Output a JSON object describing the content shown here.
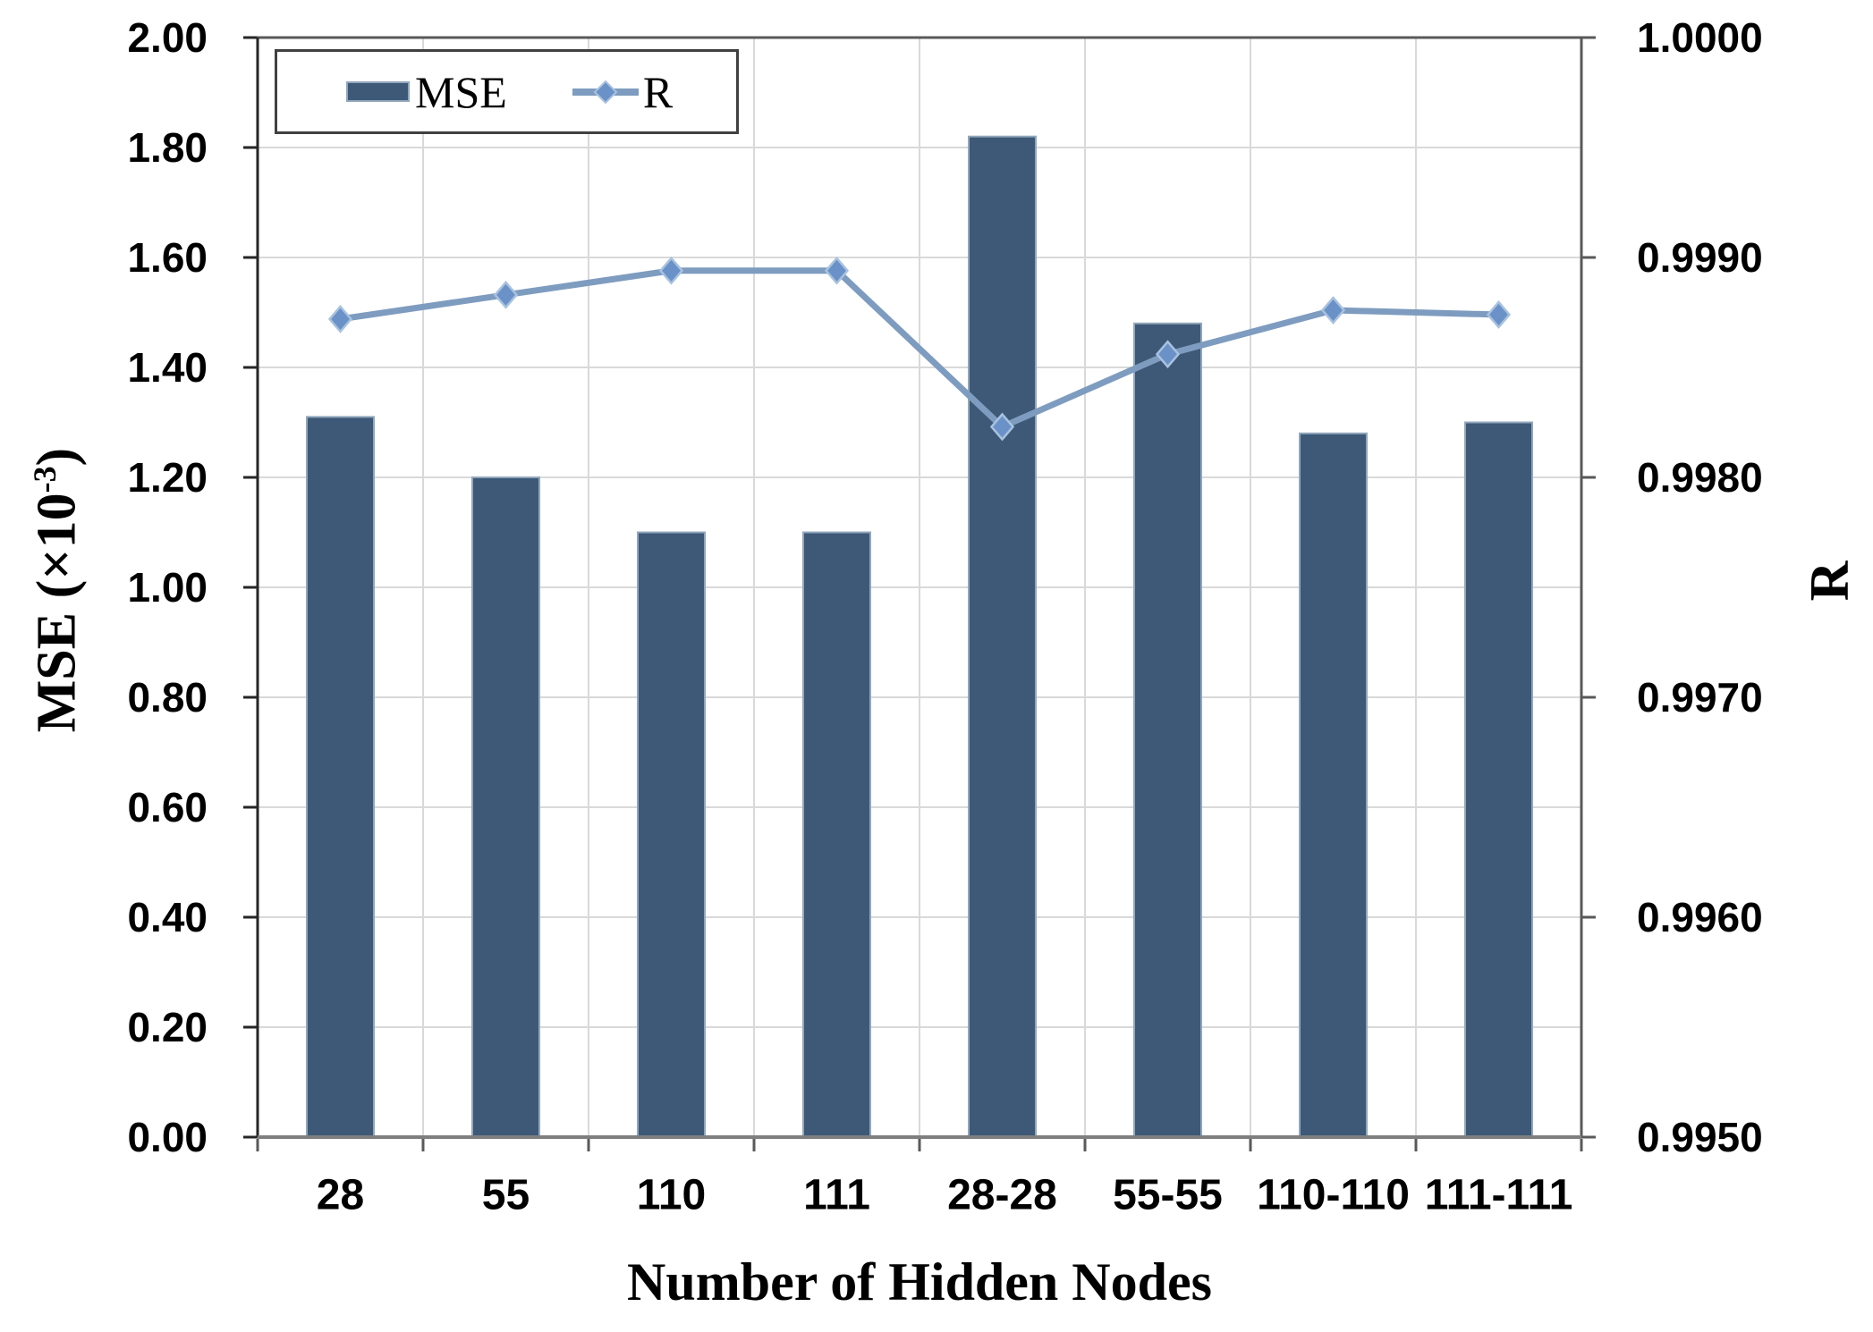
{
  "chart_data": {
    "type": "bar+line",
    "description": "Dual-axis combo chart: MSE bars on left axis, R line with diamond markers on right axis",
    "categories": [
      "28",
      "55",
      "110",
      "111",
      "28-28",
      "55-55",
      "110-110",
      "111-111"
    ],
    "series": [
      {
        "name": "MSE",
        "type": "bar",
        "y_axis": "left",
        "values": [
          1.31,
          1.2,
          1.1,
          1.1,
          1.82,
          1.48,
          1.28,
          1.3
        ]
      },
      {
        "name": "R",
        "type": "line",
        "y_axis": "right",
        "marker": "diamond",
        "values": [
          0.99872,
          0.99883,
          0.99894,
          0.99894,
          0.99823,
          0.99856,
          0.99876,
          0.99874
        ]
      }
    ],
    "left_axis": {
      "title": "MSE (×10⁻³)",
      "min": 0.0,
      "max": 2.0,
      "tick_labels": [
        "2.00",
        "1.80",
        "1.60",
        "1.40",
        "1.20",
        "1.00",
        "0.80",
        "0.60",
        "0.40",
        "0.20",
        "0.00"
      ]
    },
    "right_axis": {
      "title": "R",
      "min": 0.995,
      "max": 1.0,
      "tick_labels": [
        "1.0000",
        "0.9990",
        "0.9980",
        "0.9970",
        "0.9960",
        "0.9950"
      ]
    },
    "x_axis": {
      "title": "Number of Hidden Nodes"
    },
    "legend": {
      "position": "top-left",
      "entries": [
        "MSE",
        "R"
      ]
    },
    "grid": true
  },
  "labels": {
    "y_left_title": {
      "base": "MSE (×10",
      "sup": "-3",
      "close": ")"
    },
    "y_right_title": "R",
    "x_title": "Number of Hidden Nodes"
  },
  "colors": {
    "bar_fill": "#3D5977",
    "bar_border": "#92A7BC",
    "line": "#7E9CBF",
    "marker_fill": "#6A92C8",
    "marker_border": "#A9C2DE",
    "gridline": "#D9D9D9",
    "frame": "#595959",
    "left_axis_line": "#262626",
    "baseline": "#7F7F7F",
    "legend_border": "#404040",
    "text": "#000000",
    "background": "#FFFFFF"
  }
}
